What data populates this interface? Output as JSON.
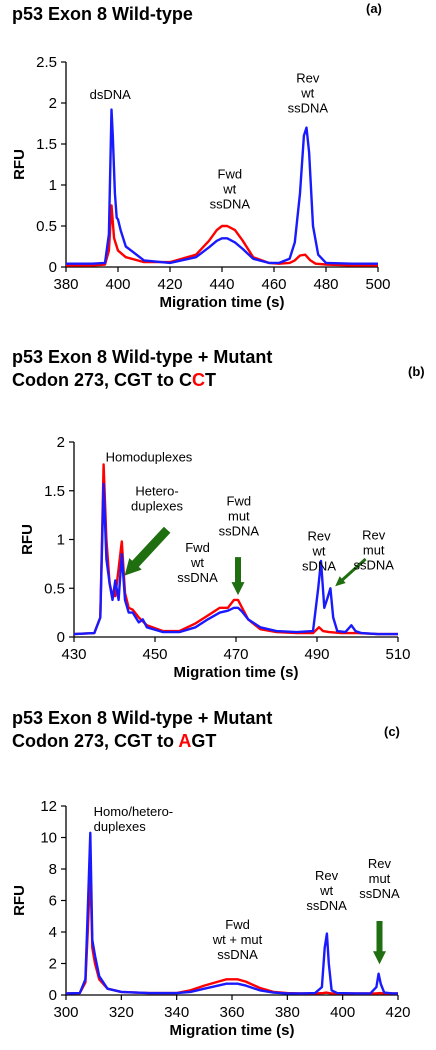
{
  "colors": {
    "series_red": "#ff0000",
    "series_blue": "#1a1aff",
    "arrow": "#1f6e10"
  },
  "chart_data": [
    {
      "type": "line",
      "panel_letter": "(a)",
      "title_lines": [
        {
          "parts": [
            {
              "text": "p53 Exon 8 Wild-type",
              "accent": false
            }
          ]
        }
      ],
      "xlabel": "Migration time (s)",
      "ylabel": "RFU",
      "xlim": [
        380,
        500
      ],
      "ylim": [
        0,
        2.5
      ],
      "xticks": [
        380,
        400,
        420,
        440,
        460,
        480,
        500
      ],
      "yticks": [
        0,
        0.5,
        1,
        1.5,
        2,
        2.5
      ],
      "xtick_labels": [
        "380",
        "400",
        "420",
        "440",
        "460",
        "480",
        "500"
      ],
      "ytick_labels": [
        "0",
        "0.5",
        "1",
        "1.5",
        "2",
        "2.5"
      ],
      "series": [
        {
          "color": "red",
          "x": [
            380,
            390,
            395,
            396.5,
            397.5,
            398.5,
            400,
            403,
            410,
            420,
            430,
            435,
            438,
            440,
            442,
            445,
            448,
            452,
            458,
            462,
            466,
            468,
            470,
            472,
            474,
            476,
            480,
            490,
            500
          ],
          "y": [
            0.02,
            0.02,
            0.03,
            0.2,
            0.75,
            0.35,
            0.2,
            0.12,
            0.06,
            0.06,
            0.15,
            0.32,
            0.45,
            0.5,
            0.5,
            0.45,
            0.32,
            0.12,
            0.05,
            0.04,
            0.05,
            0.08,
            0.14,
            0.15,
            0.08,
            0.04,
            0.03,
            0.02,
            0.02
          ]
        },
        {
          "color": "blue",
          "x": [
            380,
            390,
            395,
            396.5,
            397.5,
            398,
            398.8,
            399.5,
            400,
            401,
            403,
            410,
            420,
            430,
            435,
            438,
            440,
            442,
            445,
            448,
            452,
            458,
            462,
            466,
            468,
            470,
            471.5,
            472.5,
            473.5,
            475,
            477,
            480,
            490,
            500
          ],
          "y": [
            0.04,
            0.04,
            0.05,
            0.4,
            1.92,
            1.6,
            0.9,
            0.6,
            0.58,
            0.45,
            0.25,
            0.08,
            0.05,
            0.12,
            0.24,
            0.32,
            0.35,
            0.35,
            0.3,
            0.22,
            0.1,
            0.05,
            0.05,
            0.1,
            0.3,
            0.9,
            1.6,
            1.7,
            1.4,
            0.5,
            0.15,
            0.05,
            0.04,
            0.04
          ]
        }
      ],
      "annotations": [
        {
          "lines": [
            "dsDNA"
          ],
          "x": 397,
          "y": 2.05,
          "anchor": "middle"
        },
        {
          "lines": [
            "Fwd",
            "wt",
            "ssDNA"
          ],
          "x": 443,
          "y": 1.08,
          "anchor": "middle"
        },
        {
          "lines": [
            "Rev",
            "wt",
            "ssDNA"
          ],
          "x": 473,
          "y": 2.25,
          "anchor": "middle"
        }
      ],
      "arrows": []
    },
    {
      "type": "line",
      "panel_letter": "(b)",
      "title_lines": [
        {
          "parts": [
            {
              "text": "p53 Exon 8 Wild-type + Mutant",
              "accent": false
            }
          ]
        },
        {
          "parts": [
            {
              "text": "Codon 273, CGT to C",
              "accent": false
            },
            {
              "text": "C",
              "accent": true
            },
            {
              "text": "T",
              "accent": false
            }
          ]
        }
      ],
      "xlabel": "Migration time (s)",
      "ylabel": "RFU",
      "xlim": [
        430,
        510
      ],
      "ylim": [
        0,
        2
      ],
      "xticks": [
        430,
        450,
        470,
        490,
        510
      ],
      "yticks": [
        0,
        0.5,
        1,
        1.5,
        2
      ],
      "xtick_labels": [
        "430",
        "450",
        "470",
        "490",
        "510"
      ],
      "ytick_labels": [
        "0",
        "0.5",
        "1",
        "1.5",
        "2"
      ],
      "series": [
        {
          "color": "red",
          "x": [
            430,
            435,
            436.5,
            437.3,
            438,
            438.8,
            439.5,
            440.2,
            441,
            441.8,
            442.6,
            443.5,
            444.5,
            446,
            448,
            452,
            456,
            460,
            463,
            466,
            468,
            469.5,
            470.5,
            471.5,
            473,
            476,
            480,
            485,
            489,
            490.5,
            491.5,
            493,
            496,
            500,
            505,
            510
          ],
          "y": [
            0.03,
            0.04,
            0.2,
            1.77,
            1.0,
            0.55,
            0.42,
            0.42,
            0.7,
            0.98,
            0.45,
            0.3,
            0.28,
            0.2,
            0.12,
            0.06,
            0.06,
            0.14,
            0.22,
            0.3,
            0.3,
            0.38,
            0.38,
            0.3,
            0.18,
            0.08,
            0.05,
            0.04,
            0.04,
            0.1,
            0.06,
            0.05,
            0.04,
            0.04,
            0.03,
            0.03
          ]
        },
        {
          "color": "blue",
          "x": [
            430,
            435,
            436.5,
            437.3,
            438,
            438.8,
            439.5,
            440.2,
            441,
            441.8,
            442.6,
            443.5,
            444.5,
            446,
            447,
            448,
            452,
            456,
            460,
            463,
            466,
            468,
            469.5,
            470.5,
            471.5,
            473,
            476,
            480,
            485,
            489,
            490.3,
            491,
            491.8,
            492.6,
            493.3,
            494,
            495,
            497,
            498.5,
            499.5,
            501,
            505,
            510
          ],
          "y": [
            0.03,
            0.04,
            0.2,
            1.57,
            0.8,
            0.55,
            0.38,
            0.58,
            0.38,
            0.85,
            0.38,
            0.25,
            0.25,
            0.15,
            0.18,
            0.1,
            0.05,
            0.05,
            0.1,
            0.18,
            0.25,
            0.27,
            0.3,
            0.3,
            0.26,
            0.18,
            0.1,
            0.06,
            0.05,
            0.06,
            0.5,
            0.78,
            0.3,
            0.4,
            0.5,
            0.2,
            0.06,
            0.05,
            0.12,
            0.06,
            0.04,
            0.03,
            0.03
          ]
        }
      ],
      "annotations": [
        {
          "lines": [
            "Homoduplexes"
          ],
          "x": 437.8,
          "y": 1.8,
          "anchor": "start"
        },
        {
          "lines": [
            "Hetero-",
            "duplexes"
          ],
          "x": 450.5,
          "y": 1.45,
          "anchor": "middle"
        },
        {
          "lines": [
            "Fwd",
            "wt",
            "ssDNA"
          ],
          "x": 460.5,
          "y": 0.87,
          "anchor": "middle"
        },
        {
          "lines": [
            "Fwd",
            "mut",
            "ssDNA"
          ],
          "x": 470.7,
          "y": 1.35,
          "anchor": "middle"
        },
        {
          "lines": [
            "Rev",
            "wt",
            "sDNA"
          ],
          "x": 490.5,
          "y": 0.99,
          "anchor": "middle"
        },
        {
          "lines": [
            "Rev",
            "mut",
            "ssDNA"
          ],
          "x": 504,
          "y": 1.0,
          "anchor": "middle"
        }
      ],
      "arrows": [
        {
          "from": [
            453,
            1.1
          ],
          "to": [
            442.5,
            0.63
          ],
          "size": "large"
        },
        {
          "from": [
            470.5,
            0.82
          ],
          "to": [
            470.5,
            0.43
          ],
          "size": "medium"
        },
        {
          "from": [
            502,
            0.8
          ],
          "to": [
            494.5,
            0.52
          ],
          "size": "small"
        }
      ]
    },
    {
      "type": "line",
      "panel_letter": "(c)",
      "title_lines": [
        {
          "parts": [
            {
              "text": "p53 Exon 8 Wild-type + Mutant",
              "accent": false
            }
          ]
        },
        {
          "parts": [
            {
              "text": "Codon 273, CGT to ",
              "accent": false
            },
            {
              "text": "A",
              "accent": true
            },
            {
              "text": "GT",
              "accent": false
            }
          ]
        }
      ],
      "xlabel": "Migration time (s)",
      "ylabel": "RFU",
      "xlim": [
        300,
        420
      ],
      "ylim": [
        0,
        12
      ],
      "xticks": [
        300,
        320,
        340,
        360,
        380,
        400,
        420
      ],
      "yticks": [
        0,
        2,
        4,
        6,
        8,
        10,
        12
      ],
      "xtick_labels": [
        "300",
        "320",
        "340",
        "360",
        "380",
        "400",
        "420"
      ],
      "ytick_labels": [
        "0",
        "2",
        "4",
        "6",
        "8",
        "10",
        "12"
      ],
      "series": [
        {
          "color": "red",
          "x": [
            300,
            305,
            307,
            308,
            308.8,
            309.5,
            310.5,
            312,
            315,
            320,
            330,
            340,
            345,
            350,
            355,
            358,
            362,
            365,
            370,
            375,
            380,
            385,
            390,
            393,
            394,
            395,
            396,
            398,
            405,
            412,
            413.5,
            415,
            420
          ],
          "y": [
            0.1,
            0.12,
            0.8,
            4.5,
            8.2,
            3.0,
            2.0,
            1.0,
            0.4,
            0.2,
            0.12,
            0.12,
            0.3,
            0.6,
            0.85,
            1.0,
            1.0,
            0.85,
            0.45,
            0.2,
            0.12,
            0.1,
            0.1,
            0.12,
            0.15,
            0.12,
            0.1,
            0.1,
            0.1,
            0.1,
            0.12,
            0.1,
            0.1
          ]
        },
        {
          "color": "blue",
          "x": [
            300,
            305,
            307,
            308,
            308.8,
            309.5,
            310.5,
            312,
            315,
            320,
            330,
            340,
            345,
            350,
            355,
            358,
            362,
            365,
            370,
            375,
            380,
            385,
            390,
            392.5,
            393.5,
            394.3,
            395,
            396,
            398,
            405,
            410,
            412.2,
            413,
            413.8,
            415,
            418,
            420
          ],
          "y": [
            0.1,
            0.12,
            1.0,
            6.0,
            10.3,
            3.5,
            2.5,
            1.2,
            0.4,
            0.2,
            0.12,
            0.12,
            0.2,
            0.4,
            0.6,
            0.72,
            0.72,
            0.6,
            0.3,
            0.15,
            0.1,
            0.1,
            0.12,
            0.5,
            3.0,
            3.9,
            2.0,
            0.3,
            0.12,
            0.1,
            0.1,
            0.5,
            1.35,
            0.7,
            0.15,
            0.1,
            0.1
          ]
        }
      ],
      "annotations": [
        {
          "lines": [
            "Homo/hetero-",
            "duplexes"
          ],
          "x": 310,
          "y": 11.35,
          "anchor": "start"
        },
        {
          "lines": [
            "Fwd",
            "wt + mut",
            "ssDNA"
          ],
          "x": 362,
          "y": 4.2,
          "anchor": "middle"
        },
        {
          "lines": [
            "Rev",
            "wt",
            "ssDNA"
          ],
          "x": 394.2,
          "y": 7.3,
          "anchor": "middle"
        },
        {
          "lines": [
            "Rev",
            "mut",
            "ssDNA"
          ],
          "x": 413.3,
          "y": 8.05,
          "anchor": "middle"
        }
      ],
      "arrows": [
        {
          "from": [
            413.3,
            4.7
          ],
          "to": [
            413.3,
            1.95
          ],
          "size": "medium"
        }
      ]
    }
  ]
}
